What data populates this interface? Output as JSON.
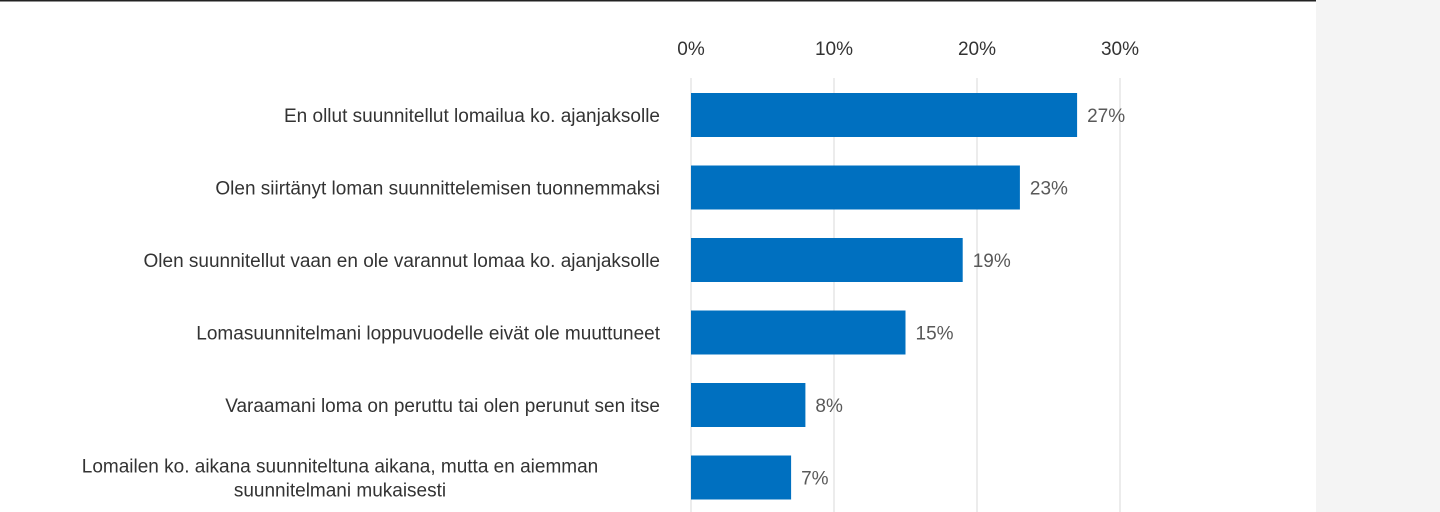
{
  "chart_data": {
    "type": "barh",
    "categories": [
      "En ollut suunnitellut lomailua ko. ajanjaksolle",
      "Olen siirtänyt loman suunnittelemisen tuonnemmaksi",
      "Olen suunnitellut vaan en ole varannut lomaa ko. ajanjaksolle",
      "Lomasuunnitelmani loppuvuodelle eivät ole muuttuneet",
      "Varaamani loma on peruttu tai olen perunut sen itse",
      "Lomailen ko. aikana suunniteltuna aikana, mutta en aiemman\nsuunnitelmani mukaisesti"
    ],
    "values": [
      27,
      23,
      19,
      15,
      8,
      7
    ],
    "value_labels": [
      "27%",
      "23%",
      "19%",
      "15%",
      "8%",
      "7%"
    ],
    "color": "#0070c0",
    "xlim": [
      0,
      30
    ],
    "xticks": [
      {
        "value": 0,
        "label": "0%"
      },
      {
        "value": 10,
        "label": "10%"
      },
      {
        "value": 20,
        "label": "20%"
      },
      {
        "value": 30,
        "label": "30%"
      }
    ],
    "grid": true
  }
}
